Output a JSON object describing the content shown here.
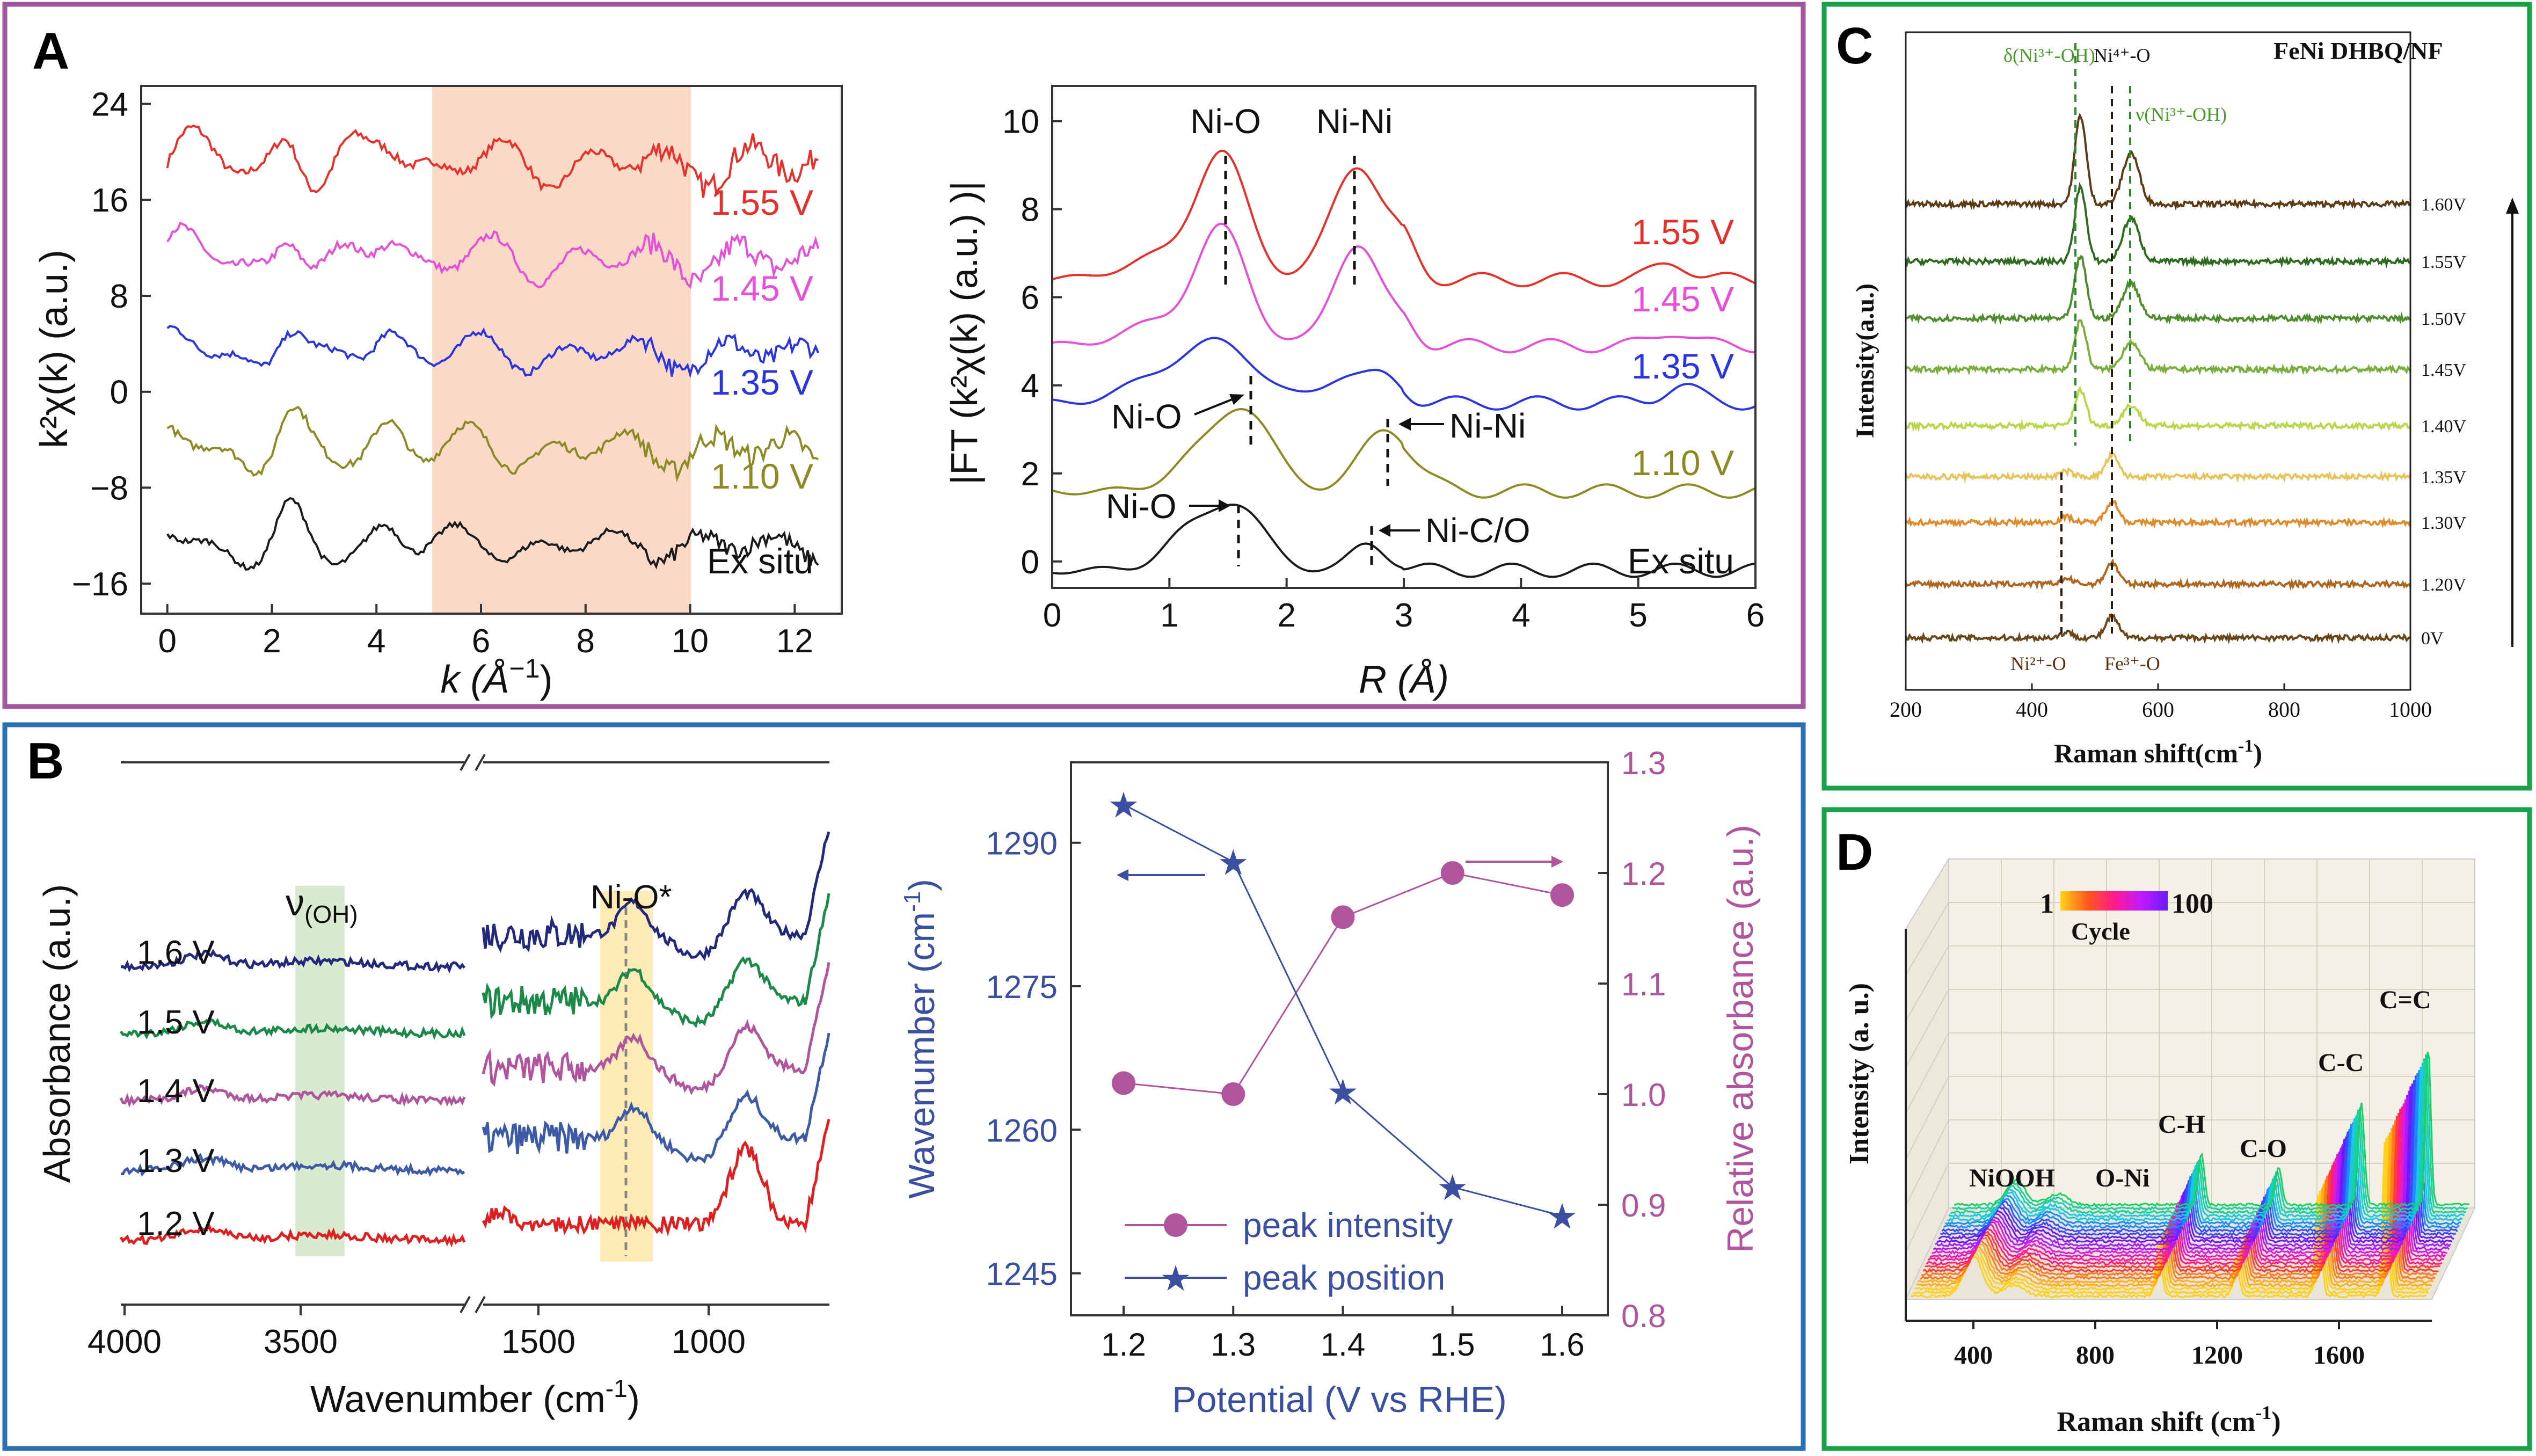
{
  "panels": {
    "A": {
      "letter": "A"
    },
    "B": {
      "letter": "B"
    },
    "C": {
      "letter": "C"
    },
    "D": {
      "letter": "D"
    }
  },
  "colors": {
    "panel_a": "#a0559d",
    "panel_b": "#2a6fb4",
    "panel_c": "#1aa24b",
    "panel_d": "#1aa24b"
  },
  "chart_data": [
    {
      "id": "A-left",
      "type": "line",
      "xlabel_main": "k (Å",
      "xlabel_sup": "−1",
      "xlabel_end": ")",
      "ylabel": "k²χ(k) (a.u.)",
      "x_ticks": [
        "0",
        "2",
        "4",
        "6",
        "8",
        "10",
        "12"
      ],
      "y_ticks": [
        "24",
        "16",
        "8",
        "0",
        "−8",
        "−16"
      ],
      "xlim": [
        -0.5,
        12.9
      ],
      "ylim": [
        -18.5,
        25.5
      ],
      "shaded_region": [
        5,
        10
      ],
      "shaded_color": "#f9d4bd",
      "series": [
        {
          "name": "1.55 V",
          "color": "#e8302a",
          "baseline": 19.0
        },
        {
          "name": "1.45 V",
          "color": "#e64fd8",
          "baseline": 11.0
        },
        {
          "name": "1.35 V",
          "color": "#2a35e0",
          "baseline": 3.2
        },
        {
          "name": "1.10 V",
          "color": "#8c8a22",
          "baseline": -4.8
        },
        {
          "name": "Ex situ",
          "color": "#1a1a1a",
          "baseline": -12.8
        }
      ]
    },
    {
      "id": "A-right",
      "type": "line",
      "xlabel": "R (Å)",
      "ylabel": "|FT (k²χ(k) (a.u.) )|",
      "x_ticks": [
        "0",
        "1",
        "2",
        "3",
        "4",
        "5",
        "6"
      ],
      "y_ticks": [
        "10",
        "8",
        "6",
        "4",
        "2",
        "0"
      ],
      "xlim": [
        0,
        6
      ],
      "ylim": [
        -0.6,
        10.8
      ],
      "annotations": [
        "Ni-O",
        "Ni-Ni",
        "Ni-O",
        "Ni-Ni",
        "Ni-O",
        "Ni-C/O"
      ],
      "series": [
        {
          "name": "1.55 V",
          "color": "#e8302a"
        },
        {
          "name": "1.45 V",
          "color": "#e64fd8"
        },
        {
          "name": "1.35 V",
          "color": "#2a35e0"
        },
        {
          "name": "1.10 V",
          "color": "#8c8a22"
        },
        {
          "name": "Ex situ",
          "color": "#1a1a1a"
        }
      ]
    },
    {
      "id": "B-left",
      "type": "line",
      "xlabel": "Wavenumber (cm",
      "xlabel_sup": "-1",
      "xlabel_end": ")",
      "ylabel": "Absorbance (a.u.)",
      "x_ticks": [
        "4000",
        "3500",
        "1500",
        "1000"
      ],
      "annotations": [
        "ν(OH)",
        "Ni-O*"
      ],
      "ann_nu": "ν",
      "ann_nu_sub": "(OH)",
      "series": [
        {
          "name": "1.6 V",
          "color": "#22287a"
        },
        {
          "name": "1.5 V",
          "color": "#1b8a48"
        },
        {
          "name": "1.4 V",
          "color": "#b0559d"
        },
        {
          "name": "1.3 V",
          "color": "#3c5aa6"
        },
        {
          "name": "1.2 V",
          "color": "#e02020"
        }
      ]
    },
    {
      "id": "B-right",
      "type": "line",
      "xlabel": "Potential (V vs RHE)",
      "ylabel_left": "Wavenumber (cm",
      "ylabel_left_sup": "-1",
      "ylabel_left_end": ")",
      "ylabel_right": "Relative absorbance (a.u.)",
      "categories": [
        1.2,
        1.3,
        1.4,
        1.5,
        1.6
      ],
      "x_ticks": [
        "1.2",
        "1.3",
        "1.4",
        "1.5",
        "1.6"
      ],
      "y_left_ticks": [
        "1290",
        "1275",
        "1260",
        "1245"
      ],
      "y_right_ticks": [
        "1.3",
        "1.2",
        "1.1",
        "1.0",
        "0.9",
        "0.8"
      ],
      "ylim_left": [
        1240.6,
        1298.4
      ],
      "ylim_right": [
        0.8,
        1.3
      ],
      "series": [
        {
          "name": "peak intensity",
          "axis": "right",
          "color": "#b0559d",
          "values": [
            1.01,
            1.0,
            1.16,
            1.2,
            1.18
          ]
        },
        {
          "name": "peak position",
          "axis": "left",
          "color": "#3a4fa0",
          "values": [
            1294,
            1288,
            1264,
            1254,
            1251
          ]
        }
      ]
    },
    {
      "id": "C",
      "type": "line",
      "title": "FeNi DHBQ/NF",
      "xlabel": "Raman shift(cm",
      "xlabel_sup": "-1",
      "xlabel_end": ")",
      "ylabel": "Intensity(a.u.)",
      "x_ticks": [
        "200",
        "400",
        "600",
        "800",
        "1000"
      ],
      "xlim": [
        200,
        1000
      ],
      "annotations": [
        "δ(Ni³⁺-OH)",
        "Ni⁴⁺-O",
        "ν(Ni³⁺-OH)",
        "Ni²⁺-O",
        "Fe³⁺-O"
      ],
      "series": [
        {
          "name": "1.60V",
          "color": "#5b3a14"
        },
        {
          "name": "1.55V",
          "color": "#2d6b1e"
        },
        {
          "name": "1.50V",
          "color": "#4f8d2c"
        },
        {
          "name": "1.45V",
          "color": "#7aae3a"
        },
        {
          "name": "1.40V",
          "color": "#b8d84a"
        },
        {
          "name": "1.35V",
          "color": "#e8c35a"
        },
        {
          "name": "1.30V",
          "color": "#e08a2a"
        },
        {
          "name": "1.20V",
          "color": "#b0651e"
        },
        {
          "name": "0V",
          "color": "#6a4518"
        }
      ]
    },
    {
      "id": "D",
      "type": "line",
      "xlabel": "Raman shift (cm",
      "xlabel_sup": "-1",
      "xlabel_end": ")",
      "ylabel": "Intensity (a. u.)",
      "x_ticks": [
        "400",
        "800",
        "1200",
        "1600"
      ],
      "legend_start": "1",
      "legend_end": "100",
      "legend_label": "Cycle",
      "peaks": [
        "NiOOH",
        "O-Ni",
        "C-H",
        "C-O",
        "C-C",
        "C=C"
      ]
    }
  ]
}
